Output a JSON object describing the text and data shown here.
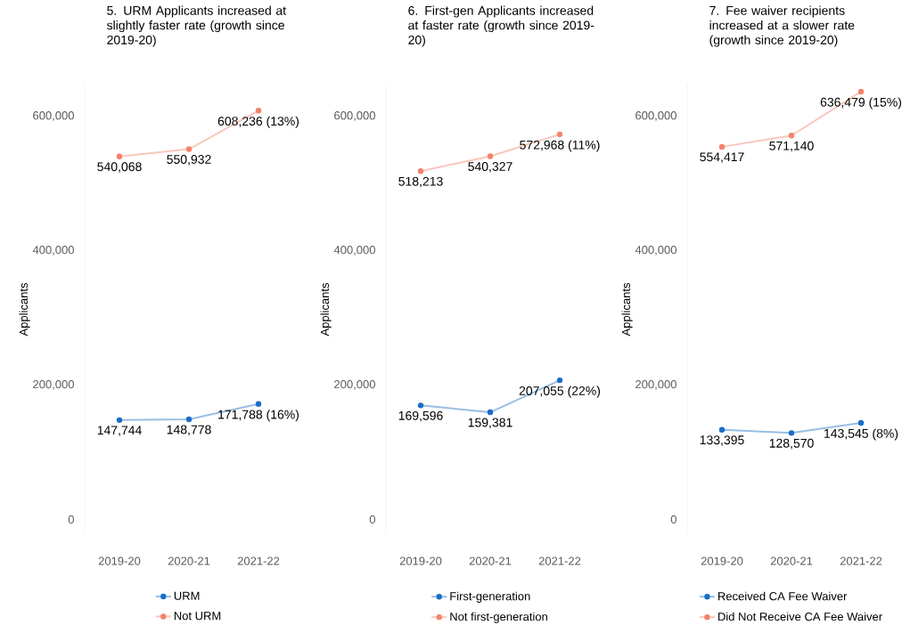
{
  "chart_data": [
    {
      "type": "line",
      "title": "5. URM Applicants increased at slightly faster rate (growth since 2019-20)",
      "ylabel": "Applicants",
      "categories": [
        "2019-20",
        "2020-21",
        "2021-22"
      ],
      "ylim": [
        -22000,
        647000
      ],
      "yticks": [
        {
          "value": 0,
          "label": "0"
        },
        {
          "value": 200000,
          "label": "200,000"
        },
        {
          "value": 400000,
          "label": "400,000"
        },
        {
          "value": 600000,
          "label": "600,000"
        }
      ],
      "legend": "bottom",
      "marker": "circle",
      "series": [
        {
          "name": "URM",
          "color": "#1a6fc4",
          "values": [
            147744,
            148778,
            171788
          ],
          "value_labels": [
            "147,744",
            "148,778",
            "171,788 (16%)"
          ]
        },
        {
          "name": "Not URM",
          "color": "#f2836b",
          "values": [
            540068,
            550932,
            608236
          ],
          "value_labels": [
            "540,068",
            "550,932",
            "608,236 (13%)"
          ]
        }
      ]
    },
    {
      "type": "line",
      "title": "6. First-gen Applicants increased at faster rate (growth since 2019-20)",
      "ylabel": "Applicants",
      "categories": [
        "2019-20",
        "2020-21",
        "2021-22"
      ],
      "ylim": [
        -22000,
        647000
      ],
      "yticks": [
        {
          "value": 0,
          "label": "0"
        },
        {
          "value": 200000,
          "label": "200,000"
        },
        {
          "value": 400000,
          "label": "400,000"
        },
        {
          "value": 600000,
          "label": "600,000"
        }
      ],
      "legend": "bottom",
      "marker": "circle",
      "series": [
        {
          "name": "First-generation",
          "color": "#1a6fc4",
          "values": [
            169596,
            159381,
            207055
          ],
          "value_labels": [
            "169,596",
            "159,381",
            "207,055 (22%)"
          ]
        },
        {
          "name": "Not first-generation",
          "color": "#f2836b",
          "values": [
            518213,
            540327,
            572968
          ],
          "value_labels": [
            "518,213",
            "540,327",
            "572,968 (11%)"
          ]
        }
      ]
    },
    {
      "type": "line",
      "title": "7. Fee waiver recipients increased at a slower rate (growth since 2019-20)",
      "ylabel": "Applicants",
      "categories": [
        "2019-20",
        "2020-21",
        "2021-22"
      ],
      "ylim": [
        -22000,
        647000
      ],
      "yticks": [
        {
          "value": 0,
          "label": "0"
        },
        {
          "value": 200000,
          "label": "200,000"
        },
        {
          "value": 400000,
          "label": "400,000"
        },
        {
          "value": 600000,
          "label": "600,000"
        }
      ],
      "legend": "bottom",
      "marker": "circle",
      "series": [
        {
          "name": "Received CA Fee Waiver",
          "color": "#1a6fc4",
          "values": [
            133395,
            128570,
            143545
          ],
          "value_labels": [
            "133,395",
            "128,570",
            "143,545 (8%)"
          ]
        },
        {
          "name": "Did Not Receive CA Fee Waiver",
          "color": "#f2836b",
          "values": [
            554417,
            571140,
            636479
          ],
          "value_labels": [
            "554,417",
            "571,140",
            "636,479 (15%)"
          ]
        }
      ]
    }
  ]
}
